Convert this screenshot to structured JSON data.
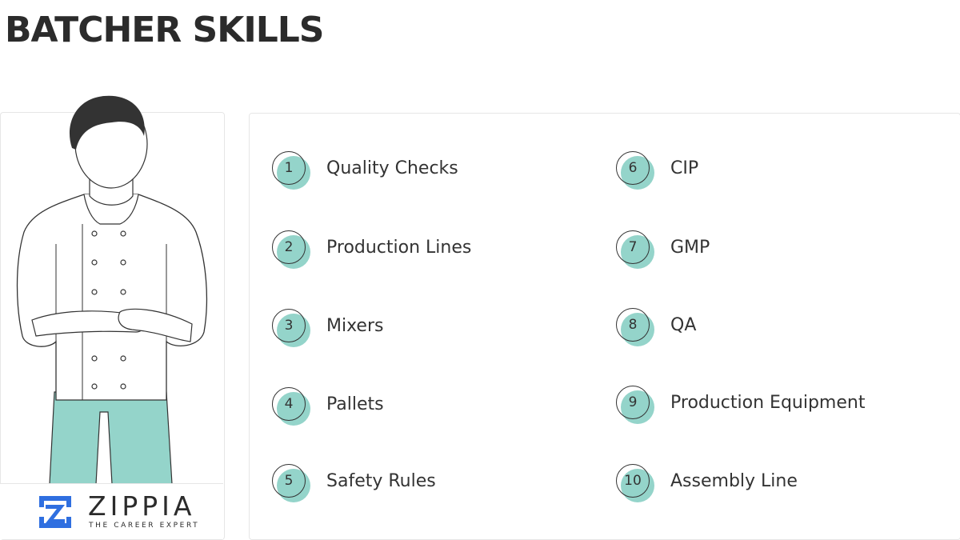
{
  "title": "BATCHER SKILLS",
  "colors": {
    "accent": "#94d4ca",
    "logo_blue": "#2f6fe0"
  },
  "skills": [
    {
      "number": "1",
      "label": "Quality Checks"
    },
    {
      "number": "2",
      "label": "Production Lines"
    },
    {
      "number": "3",
      "label": "Mixers"
    },
    {
      "number": "4",
      "label": "Pallets"
    },
    {
      "number": "5",
      "label": "Safety Rules"
    },
    {
      "number": "6",
      "label": "CIP"
    },
    {
      "number": "7",
      "label": "GMP"
    },
    {
      "number": "8",
      "label": "QA"
    },
    {
      "number": "9",
      "label": "Production Equipment"
    },
    {
      "number": "10",
      "label": "Assembly Line"
    }
  ],
  "logo": {
    "name": "ZIPPIA",
    "tagline": "THE CAREER EXPERT"
  }
}
